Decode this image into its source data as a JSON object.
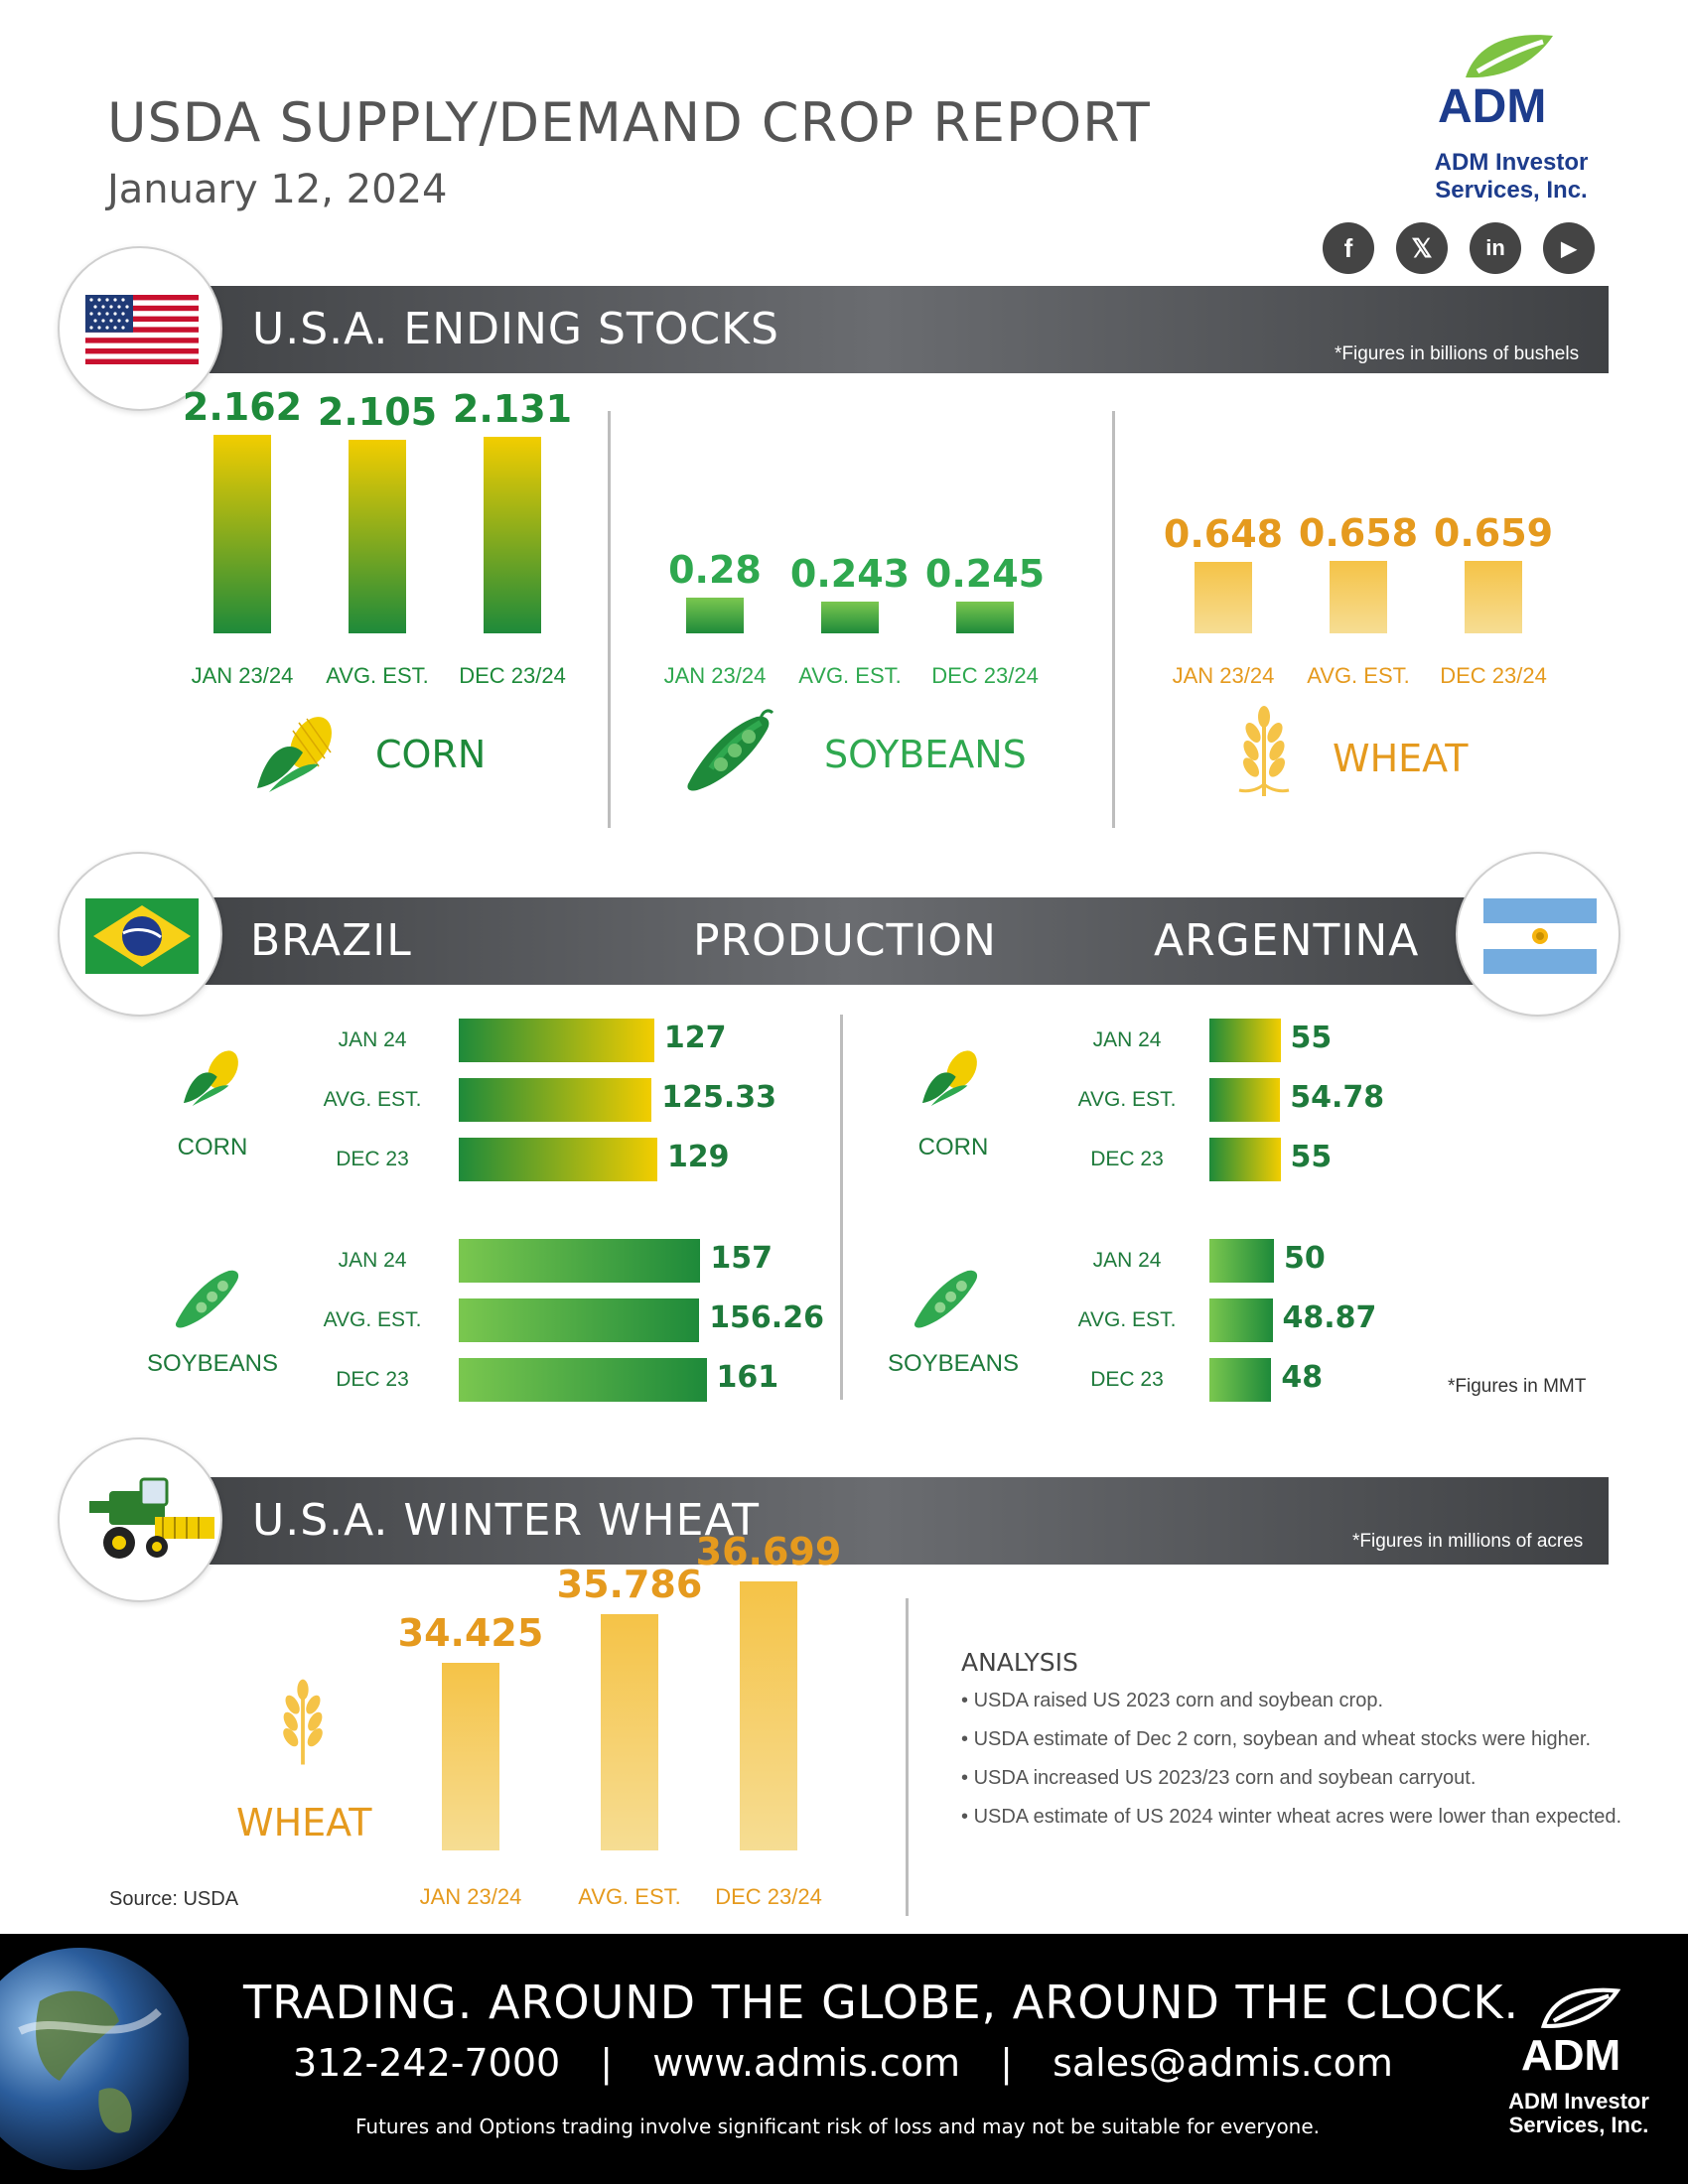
{
  "header": {
    "title": "USDA SUPPLY/DEMAND CROP REPORT",
    "date": "January 12, 2024"
  },
  "logo": {
    "word": "ADM",
    "name_line1": "ADM Investor",
    "name_line2": "Services, Inc.",
    "brand_green": "#7dc242",
    "brand_blue": "#1d3c8c"
  },
  "social": [
    {
      "icon": "facebook-icon",
      "glyph": "f"
    },
    {
      "icon": "x-icon",
      "glyph": "𝕏"
    },
    {
      "icon": "linkedin-icon",
      "glyph": "in"
    },
    {
      "icon": "youtube-icon",
      "glyph": "▶"
    }
  ],
  "colors": {
    "green": "#1e8a3a",
    "yellow": "#f2cd00",
    "orange": "#e59a1e",
    "wheat_fill": "#f5c347",
    "band": "#505255"
  },
  "chart_data": [
    {
      "type": "bar",
      "section": "U.S.A. ENDING STOCKS",
      "note": "*Figures in billions of bushels",
      "groups": [
        {
          "crop": "CORN",
          "categories": [
            "JAN 23/24",
            "AVG. EST.",
            "DEC 23/24"
          ],
          "values": [
            2.162,
            2.105,
            2.131
          ],
          "labels": [
            "2.162",
            "2.105",
            "2.131"
          ]
        },
        {
          "crop": "SOYBEANS",
          "categories": [
            "JAN 23/24",
            "AVG. EST.",
            "DEC 23/24"
          ],
          "values": [
            0.28,
            0.243,
            0.245
          ],
          "labels": [
            "0.28",
            "0.243",
            "0.245"
          ]
        },
        {
          "crop": "WHEAT",
          "categories": [
            "JAN 23/24",
            "AVG. EST.",
            "DEC 23/24"
          ],
          "values": [
            0.648,
            0.658,
            0.659
          ],
          "labels": [
            "0.648",
            "0.658",
            "0.659"
          ]
        }
      ]
    },
    {
      "type": "bar",
      "orientation": "horizontal",
      "section": "PRODUCTION",
      "note": "*Figures in MMT",
      "countries": [
        {
          "name": "BRAZIL",
          "crops": [
            {
              "crop": "CORN",
              "categories": [
                "JAN 24",
                "AVG. EST.",
                "DEC 23"
              ],
              "values": [
                127,
                125.33,
                129
              ],
              "labels": [
                "127",
                "125.33",
                "129"
              ]
            },
            {
              "crop": "SOYBEANS",
              "categories": [
                "JAN 24",
                "AVG. EST.",
                "DEC 23"
              ],
              "values": [
                157,
                156.26,
                161
              ],
              "labels": [
                "157",
                "156.26",
                "161"
              ]
            }
          ]
        },
        {
          "name": "ARGENTINA",
          "crops": [
            {
              "crop": "CORN",
              "categories": [
                "JAN 24",
                "AVG. EST.",
                "DEC 23"
              ],
              "values": [
                55,
                54.78,
                55
              ],
              "labels": [
                "55",
                "54.78",
                "55"
              ]
            },
            {
              "crop": "SOYBEANS",
              "categories": [
                "JAN 24",
                "AVG. EST.",
                "DEC 23"
              ],
              "values": [
                50,
                48.87,
                48
              ],
              "labels": [
                "50",
                "48.87",
                "48"
              ]
            }
          ]
        }
      ]
    },
    {
      "type": "bar",
      "section": "U.S.A. WINTER WHEAT",
      "note": "*Figures in millions of acres",
      "crop": "WHEAT",
      "categories": [
        "JAN 23/24",
        "AVG. EST.",
        "DEC 23/24"
      ],
      "values": [
        34.425,
        35.786,
        36.699
      ],
      "labels": [
        "34.425",
        "35.786",
        "36.699"
      ]
    }
  ],
  "source": "Source: USDA",
  "analysis": {
    "title": "ANALYSIS",
    "bullets": [
      "USDA raised US 2023 corn and soybean crop.",
      "USDA estimate of Dec 2 corn, soybean and wheat stocks were higher.",
      "USDA increased US 2023/23 corn and soybean carryout.",
      "USDA estimate of US 2024 winter wheat acres were lower than expected."
    ]
  },
  "footer": {
    "tagline": "TRADING. AROUND THE GLOBE, AROUND THE CLOCK.",
    "phone": "312-242-7000",
    "website": "www.admis.com",
    "email": "sales@admis.com",
    "separator": "|",
    "disclaimer": "Futures and Options trading involve significant risk of loss and may not be suitable for everyone.",
    "logo_word": "ADM",
    "logo_line1": "ADM Investor",
    "logo_line2": "Services, Inc."
  }
}
